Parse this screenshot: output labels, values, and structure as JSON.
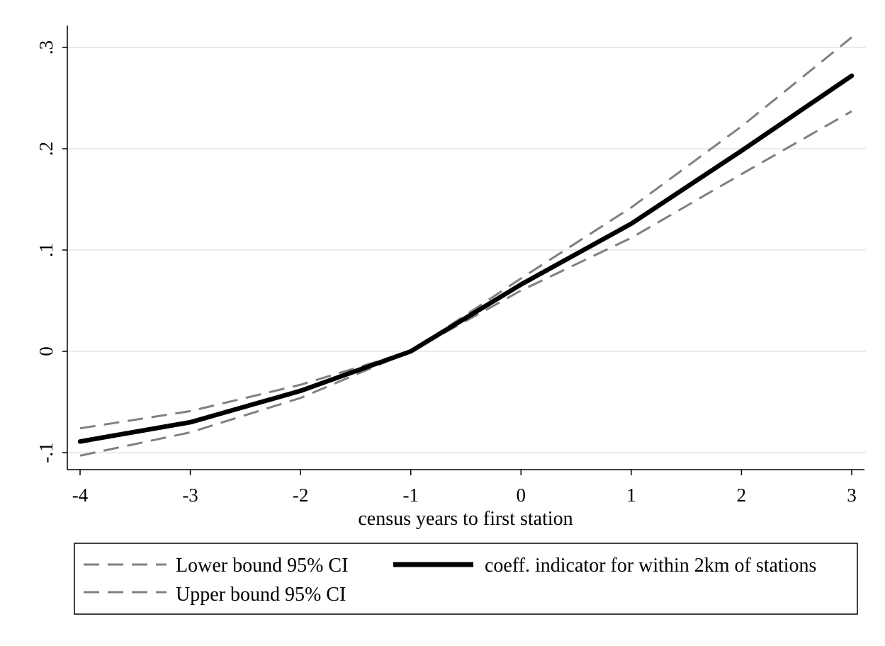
{
  "chart_data": {
    "type": "line",
    "xlabel": "census years to first station",
    "ylabel": "",
    "x": [
      -4,
      -3,
      -2,
      -1,
      0,
      1,
      2,
      3
    ],
    "xlim": [
      -4.1,
      3.05
    ],
    "ylim": [
      -0.115,
      0.32
    ],
    "x_ticks": [
      -4,
      -3,
      -2,
      -1,
      0,
      1,
      2,
      3
    ],
    "x_tick_labels": [
      "-4",
      "-3",
      "-2",
      "-1",
      "0",
      "1",
      "2",
      "3"
    ],
    "y_ticks": [
      -0.1,
      0,
      0.1,
      0.2,
      0.3
    ],
    "y_tick_labels": [
      "-.1",
      "0",
      ".1",
      ".2",
      ".3"
    ],
    "grid": "horizontal",
    "legend_position": "bottom",
    "series": [
      {
        "name": "Lower bound 95% CI",
        "style": "dashed",
        "color": "#808080",
        "values": [
          -0.103,
          -0.08,
          -0.046,
          0.0,
          0.06,
          0.112,
          0.175,
          0.237
        ]
      },
      {
        "name": "Upper bound 95% CI",
        "style": "dashed",
        "color": "#808080",
        "values": [
          -0.076,
          -0.059,
          -0.033,
          0.0,
          0.072,
          0.142,
          0.222,
          0.31
        ]
      },
      {
        "name": "coeff. indicator for within 2km of stations",
        "style": "solid",
        "color": "#000000",
        "values": [
          -0.089,
          -0.07,
          -0.039,
          0.0,
          0.066,
          0.126,
          0.198,
          0.272
        ]
      }
    ]
  }
}
